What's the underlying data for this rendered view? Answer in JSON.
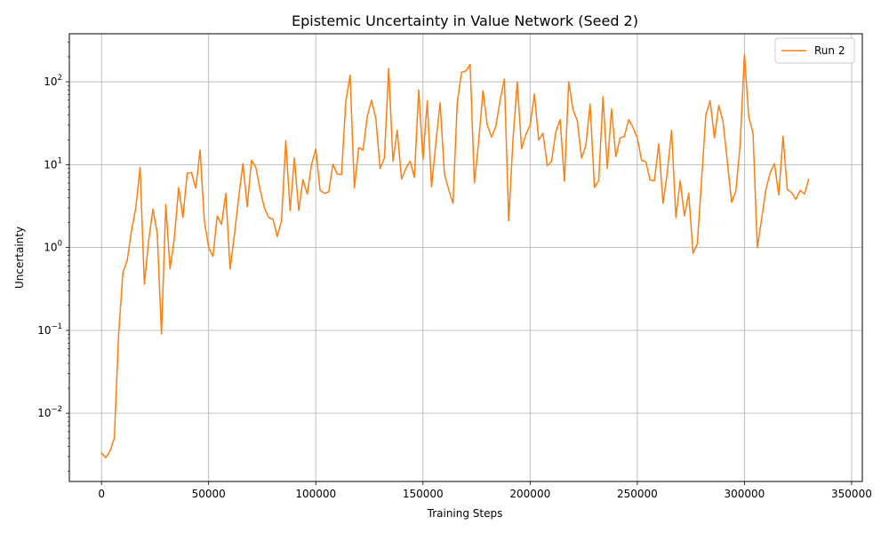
{
  "chart_data": {
    "type": "line",
    "title": "Epistemic Uncertainty in Value Network (Seed 2)",
    "xlabel": "Training Steps",
    "ylabel": "Uncertainty",
    "xlim": [
      -15000,
      355000
    ],
    "ylim": [
      0.0015,
      380
    ],
    "yscale": "log",
    "grid": true,
    "legend": "top-right",
    "xticks": [
      0,
      50000,
      100000,
      150000,
      200000,
      250000,
      300000,
      350000
    ],
    "xtick_labels": [
      "0",
      "50000",
      "100000",
      "150000",
      "200000",
      "250000",
      "300000",
      "350000"
    ],
    "yticks": [
      0.01,
      0.1,
      1,
      10,
      100
    ],
    "ytick_labels": [
      {
        "base": "10",
        "exp": "−2"
      },
      {
        "base": "10",
        "exp": "−1"
      },
      {
        "base": "10",
        "exp": "0"
      },
      {
        "base": "10",
        "exp": "1"
      },
      {
        "base": "10",
        "exp": "2"
      }
    ],
    "series": [
      {
        "name": "Run 2",
        "color": "#ff7f0e",
        "points": [
          [
            0,
            0.0033
          ],
          [
            2000,
            0.0029
          ],
          [
            4000,
            0.0035
          ],
          [
            6000,
            0.005
          ],
          [
            8000,
            0.09
          ],
          [
            10000,
            0.5
          ],
          [
            12000,
            0.7
          ],
          [
            14000,
            1.6
          ],
          [
            16000,
            3.0
          ],
          [
            18000,
            9.3
          ],
          [
            20000,
            0.36
          ],
          [
            22000,
            1.2
          ],
          [
            24000,
            2.9
          ],
          [
            26000,
            1.5
          ],
          [
            28000,
            0.09
          ],
          [
            30000,
            3.3
          ],
          [
            32000,
            0.55
          ],
          [
            34000,
            1.3
          ],
          [
            36000,
            5.3
          ],
          [
            38000,
            2.3
          ],
          [
            40000,
            7.9
          ],
          [
            42000,
            8.0
          ],
          [
            44000,
            5.2
          ],
          [
            46000,
            15.0
          ],
          [
            48000,
            2.1
          ],
          [
            50000,
            1.0
          ],
          [
            52000,
            0.78
          ],
          [
            54000,
            2.4
          ],
          [
            56000,
            1.9
          ],
          [
            58000,
            4.5
          ],
          [
            60000,
            0.55
          ],
          [
            62000,
            1.4
          ],
          [
            64000,
            4.0
          ],
          [
            66000,
            10.3
          ],
          [
            68000,
            3.1
          ],
          [
            70000,
            11.3
          ],
          [
            72000,
            9.3
          ],
          [
            74000,
            5.0
          ],
          [
            76000,
            3.0
          ],
          [
            78000,
            2.3
          ],
          [
            80000,
            2.2
          ],
          [
            82000,
            1.35
          ],
          [
            84000,
            2.1
          ],
          [
            86000,
            19.5
          ],
          [
            88000,
            2.8
          ],
          [
            90000,
            12.0
          ],
          [
            92000,
            2.8
          ],
          [
            94000,
            6.6
          ],
          [
            96000,
            4.4
          ],
          [
            98000,
            10.0
          ],
          [
            100000,
            15.5
          ],
          [
            102000,
            4.9
          ],
          [
            104000,
            4.5
          ],
          [
            106000,
            4.7
          ],
          [
            108000,
            10.1
          ],
          [
            110000,
            7.7
          ],
          [
            112000,
            7.6
          ],
          [
            114000,
            58.0
          ],
          [
            116000,
            120.0
          ],
          [
            118000,
            5.2
          ],
          [
            120000,
            16.0
          ],
          [
            122000,
            15.0
          ],
          [
            124000,
            38.0
          ],
          [
            126000,
            60.0
          ],
          [
            128000,
            36.0
          ],
          [
            130000,
            9.0
          ],
          [
            132000,
            12.0
          ],
          [
            134000,
            145.0
          ],
          [
            136000,
            11.0
          ],
          [
            138000,
            26.0
          ],
          [
            140000,
            6.7
          ],
          [
            142000,
            9.0
          ],
          [
            144000,
            11.0
          ],
          [
            146000,
            7.0
          ],
          [
            148000,
            80.0
          ],
          [
            150000,
            11.5
          ],
          [
            152000,
            59.0
          ],
          [
            154000,
            5.4
          ],
          [
            156000,
            18.0
          ],
          [
            158000,
            56.0
          ],
          [
            160000,
            7.8
          ],
          [
            162000,
            5.0
          ],
          [
            164000,
            3.4
          ],
          [
            166000,
            56.0
          ],
          [
            168000,
            130.0
          ],
          [
            170000,
            135.0
          ],
          [
            172000,
            162.0
          ],
          [
            174000,
            6.0
          ],
          [
            176000,
            19.0
          ],
          [
            178000,
            78.0
          ],
          [
            180000,
            30.0
          ],
          [
            182000,
            21.5
          ],
          [
            184000,
            29.0
          ],
          [
            186000,
            60.0
          ],
          [
            188000,
            108.0
          ],
          [
            190000,
            2.1
          ],
          [
            192000,
            20.0
          ],
          [
            194000,
            100.0
          ],
          [
            196000,
            15.5
          ],
          [
            198000,
            23.0
          ],
          [
            200000,
            30.0
          ],
          [
            202000,
            71.0
          ],
          [
            204000,
            19.8
          ],
          [
            206000,
            24.0
          ],
          [
            208000,
            9.7
          ],
          [
            210000,
            11.0
          ],
          [
            212000,
            25.0
          ],
          [
            214000,
            35.0
          ],
          [
            216000,
            6.3
          ],
          [
            218000,
            100.0
          ],
          [
            220000,
            46.0
          ],
          [
            222000,
            34.0
          ],
          [
            224000,
            12.0
          ],
          [
            226000,
            17.0
          ],
          [
            228000,
            54.0
          ],
          [
            230000,
            5.3
          ],
          [
            232000,
            6.4
          ],
          [
            234000,
            66.0
          ],
          [
            236000,
            9.0
          ],
          [
            238000,
            47.0
          ],
          [
            240000,
            12.5
          ],
          [
            242000,
            21.0
          ],
          [
            244000,
            22.0
          ],
          [
            246000,
            35.0
          ],
          [
            248000,
            28.0
          ],
          [
            250000,
            21.0
          ],
          [
            252000,
            11.3
          ],
          [
            254000,
            10.8
          ],
          [
            256000,
            6.5
          ],
          [
            258000,
            6.4
          ],
          [
            260000,
            17.8
          ],
          [
            262000,
            3.4
          ],
          [
            264000,
            8.0
          ],
          [
            266000,
            26.0
          ],
          [
            268000,
            2.3
          ],
          [
            270000,
            6.4
          ],
          [
            272000,
            2.4
          ],
          [
            274000,
            4.5
          ],
          [
            276000,
            0.85
          ],
          [
            278000,
            1.1
          ],
          [
            280000,
            6.5
          ],
          [
            282000,
            40.0
          ],
          [
            284000,
            59.0
          ],
          [
            286000,
            21.0
          ],
          [
            288000,
            52.0
          ],
          [
            290000,
            33.0
          ],
          [
            292000,
            11.0
          ],
          [
            294000,
            3.5
          ],
          [
            296000,
            4.8
          ],
          [
            298000,
            17.5
          ],
          [
            300000,
            215.0
          ],
          [
            302000,
            38.0
          ],
          [
            304000,
            24.0
          ],
          [
            306000,
            1.0
          ],
          [
            308000,
            2.2
          ],
          [
            310000,
            5.0
          ],
          [
            312000,
            8.0
          ],
          [
            314000,
            10.3
          ],
          [
            316000,
            4.3
          ],
          [
            318000,
            22.0
          ],
          [
            320000,
            5.0
          ],
          [
            322000,
            4.6
          ],
          [
            324000,
            3.8
          ],
          [
            326000,
            4.9
          ],
          [
            328000,
            4.4
          ],
          [
            330000,
            6.7
          ]
        ]
      }
    ]
  }
}
